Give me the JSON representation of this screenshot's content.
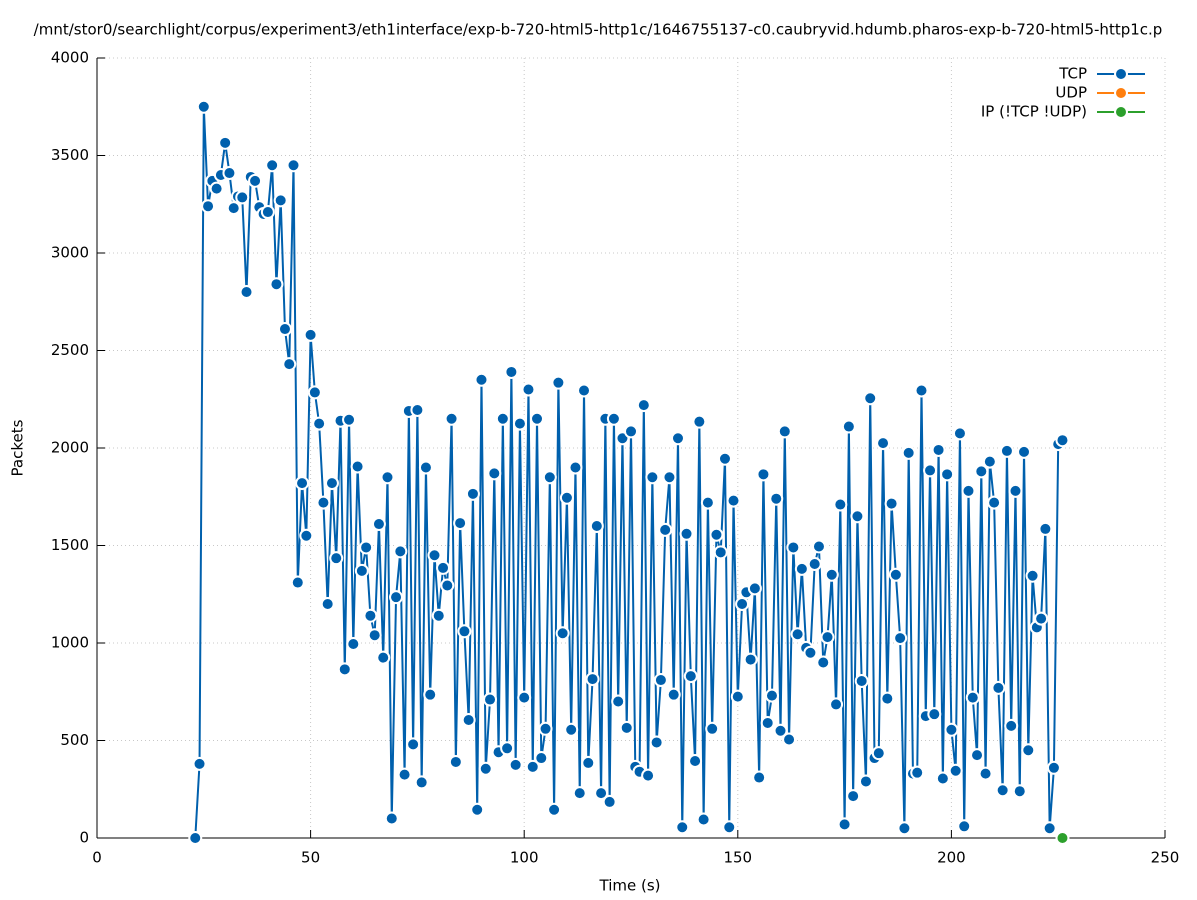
{
  "chart_data": {
    "type": "line",
    "title": "/mnt/stor0/searchlight/corpus/experiment3/eth1interface/exp-b-720-html5-http1c/1646755137-c0.caubryvid.hdumb.pharos-exp-b-720-html5-http1c.p",
    "x_label": "Time (s)",
    "y_label": "Packets",
    "xlim": [
      0,
      250
    ],
    "xticks": [
      0,
      50,
      100,
      150,
      200,
      250
    ],
    "ylim": [
      0,
      4000
    ],
    "yticks": [
      0,
      500,
      1000,
      1500,
      2000,
      2500,
      3000,
      3500,
      4000
    ],
    "grid": true,
    "legend": "top-right",
    "series": [
      {
        "name": "TCP",
        "color": "#0060ad",
        "x": [
          23,
          24,
          25,
          26,
          27,
          28,
          29,
          30,
          31,
          32,
          33,
          34,
          35,
          36,
          37,
          38,
          39,
          40,
          41,
          42,
          43,
          44,
          45,
          46,
          47,
          48,
          49,
          50,
          51,
          52,
          53,
          54,
          55,
          56,
          57,
          58,
          59,
          60,
          61,
          62,
          63,
          64,
          65,
          66,
          67,
          68,
          69,
          70,
          71,
          72,
          73,
          74,
          75,
          76,
          77,
          78,
          79,
          80,
          81,
          82,
          83,
          84,
          85,
          86,
          87,
          88,
          89,
          90,
          91,
          92,
          93,
          94,
          95,
          96,
          97,
          98,
          99,
          100,
          101,
          102,
          103,
          104,
          105,
          106,
          107,
          108,
          109,
          110,
          111,
          112,
          113,
          114,
          115,
          116,
          117,
          118,
          119,
          120,
          121,
          122,
          123,
          124,
          125,
          126,
          127,
          128,
          129,
          130,
          131,
          132,
          133,
          134,
          135,
          136,
          137,
          138,
          139,
          140,
          141,
          142,
          143,
          144,
          145,
          146,
          147,
          148,
          149,
          150,
          151,
          152,
          153,
          154,
          155,
          156,
          157,
          158,
          159,
          160,
          161,
          162,
          163,
          164,
          165,
          166,
          167,
          168,
          169,
          170,
          171,
          172,
          173,
          174,
          175,
          176,
          177,
          178,
          179,
          180,
          181,
          182,
          183,
          184,
          185,
          186,
          187,
          188,
          189,
          190,
          191,
          192,
          193,
          194,
          195,
          196,
          197,
          198,
          199,
          200,
          201,
          202,
          203,
          204,
          205,
          206,
          207,
          208,
          209,
          210,
          211,
          212,
          213,
          214,
          215,
          216,
          217,
          218,
          219,
          220,
          221,
          222,
          223,
          224,
          225,
          226
        ],
        "values": [
          0,
          380,
          3750,
          3240,
          3370,
          3330,
          3400,
          3565,
          3410,
          3230,
          3290,
          3285,
          2800,
          3390,
          3370,
          3235,
          3200,
          3210,
          3450,
          2840,
          3270,
          2610,
          2430,
          3450,
          1310,
          1820,
          1550,
          2580,
          2285,
          2125,
          1720,
          1200,
          1820,
          1435,
          2140,
          865,
          2145,
          995,
          1905,
          1370,
          1490,
          1140,
          1040,
          1610,
          925,
          1850,
          100,
          1235,
          1470,
          325,
          2190,
          480,
          2195,
          285,
          1900,
          735,
          1450,
          1140,
          1385,
          1295,
          2150,
          390,
          1615,
          1060,
          605,
          1765,
          145,
          2350,
          355,
          710,
          1870,
          440,
          2150,
          460,
          2390,
          375,
          2125,
          720,
          2300,
          365,
          2150,
          410,
          560,
          1850,
          145,
          2335,
          1050,
          1745,
          555,
          1900,
          230,
          2295,
          385,
          815,
          1600,
          230,
          2150,
          185,
          2150,
          700,
          2050,
          565,
          2085,
          365,
          340,
          2220,
          320,
          1850,
          490,
          810,
          1580,
          1850,
          735,
          2050,
          55,
          1560,
          830,
          395,
          2135,
          95,
          1720,
          560,
          1555,
          1465,
          1945,
          55,
          1730,
          725,
          1200,
          1260,
          915,
          1280,
          310,
          1865,
          590,
          730,
          1740,
          550,
          2085,
          505,
          1490,
          1045,
          1380,
          975,
          950,
          1405,
          1495,
          900,
          1030,
          1350,
          685,
          1710,
          70,
          2110,
          215,
          1650,
          805,
          290,
          2255,
          410,
          435,
          2025,
          715,
          1715,
          1350,
          1025,
          50,
          1975,
          330,
          335,
          2295,
          625,
          1885,
          635,
          1990,
          305,
          1865,
          555,
          345,
          2075,
          60,
          1780,
          720,
          425,
          1880,
          330,
          1930,
          1720,
          770,
          245,
          1985,
          575,
          1780,
          240,
          1980,
          450,
          1345,
          1080,
          1125,
          1585,
          50,
          360,
          2020,
          2040
        ]
      },
      {
        "name": "UDP",
        "color": "#ff7f0e",
        "x": [],
        "values": []
      },
      {
        "name": "IP (!TCP  !UDP)",
        "color": "#2ca02c",
        "x": [
          226
        ],
        "values": [
          0
        ]
      }
    ]
  }
}
